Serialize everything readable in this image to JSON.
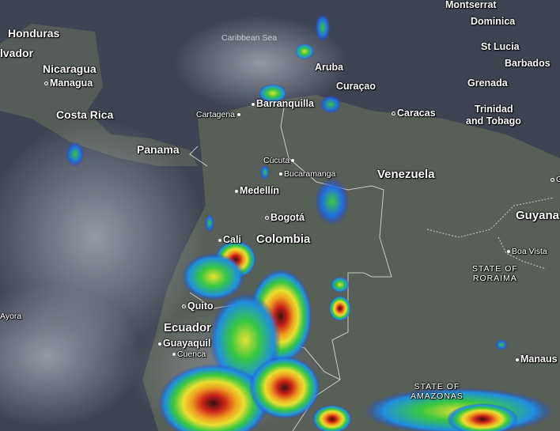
{
  "map": {
    "type": "satellite-radar-overlay",
    "colors": {
      "ocean": "#3d4350",
      "land": "#5a6258",
      "cloud": "#9aa0ae",
      "radar_light": "#1e5cff",
      "radar_mid": "#2fd04a",
      "radar_high": "#f2e22a",
      "radar_heavy": "#d8281e",
      "borders": "#e6e6e6"
    },
    "water_labels": [
      {
        "text": "Caribbean Sea"
      }
    ],
    "countries": [
      {
        "text": "Honduras"
      },
      {
        "text": "lvador"
      },
      {
        "text": "Nicaragua"
      },
      {
        "text": "Costa Rica"
      },
      {
        "text": "Panama"
      },
      {
        "text": "Colombia"
      },
      {
        "text": "Venezuela"
      },
      {
        "text": "Ecuador"
      },
      {
        "text": "Guyana"
      },
      {
        "text": "Aruba"
      },
      {
        "text": "Curaçao"
      },
      {
        "text": "Montserrat"
      },
      {
        "text": "Dominica"
      },
      {
        "text": "St Lucia"
      },
      {
        "text": "Barbados"
      },
      {
        "text": "Grenada"
      },
      {
        "text": "Trinidad"
      },
      {
        "text": "and Tobago"
      }
    ],
    "cities": [
      {
        "text": "Managua"
      },
      {
        "text": "Cartagena"
      },
      {
        "text": "Barranquilla"
      },
      {
        "text": "Caracas"
      },
      {
        "text": "Cúcuta"
      },
      {
        "text": "Bucaramanga"
      },
      {
        "text": "Medellín"
      },
      {
        "text": "Bogotá"
      },
      {
        "text": "Cali"
      },
      {
        "text": "Quito"
      },
      {
        "text": "Guayaquil"
      },
      {
        "text": "Cuenca"
      },
      {
        "text": "Ayora"
      },
      {
        "text": "Boa Vista"
      },
      {
        "text": "Manaus"
      },
      {
        "text": "G"
      }
    ],
    "states": [
      {
        "line1": "STATE OF",
        "line2": "RORAIMA"
      },
      {
        "line1": "STATE OF",
        "line2": "AMAZONAS"
      }
    ]
  }
}
